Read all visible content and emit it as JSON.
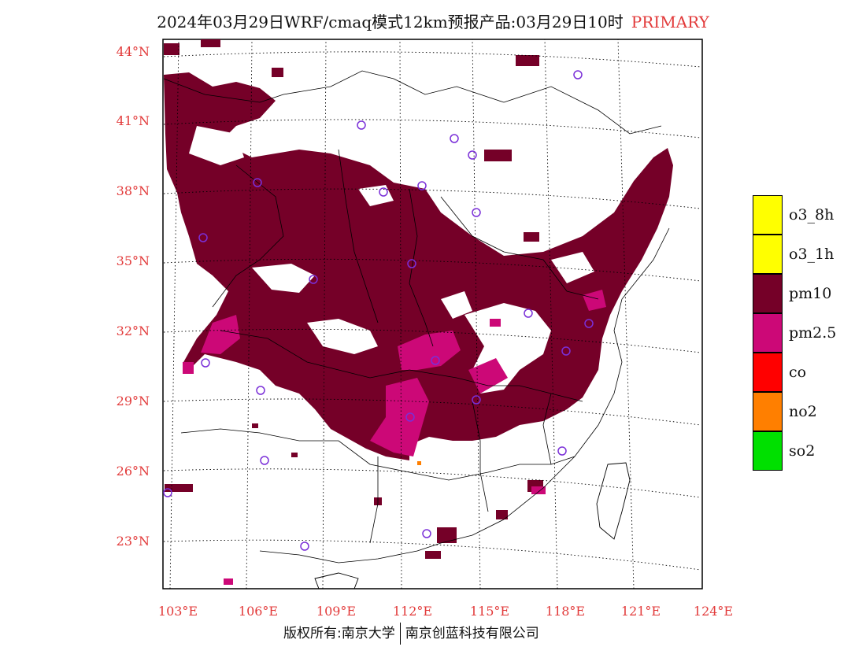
{
  "title": {
    "text": "2024年03月29日WRF/cmaq模式12km预报产品:03月29日10时",
    "mode": "PRIMARY"
  },
  "axes": {
    "lat_labels": [
      "44°N",
      "41°N",
      "38°N",
      "35°N",
      "32°N",
      "29°N",
      "26°N",
      "23°N"
    ],
    "lon_labels": [
      "103°E",
      "106°E",
      "109°E",
      "112°E",
      "115°E",
      "118°E",
      "121°E",
      "124°E"
    ]
  },
  "legend": [
    {
      "label": "o3_8h",
      "color": "#ffff00"
    },
    {
      "label": "o3_1h",
      "color": "#ffff00"
    },
    {
      "label": "pm10",
      "color": "#750028"
    },
    {
      "label": "pm2.5",
      "color": "#cc0877"
    },
    {
      "label": "co",
      "color": "#ff0000"
    },
    {
      "label": "no2",
      "color": "#ff7f00"
    },
    {
      "label": "so2",
      "color": "#00e000"
    }
  ],
  "colors": {
    "tick_text": "#e23a3a",
    "pm10": "#750028",
    "pm25": "#cc0877",
    "station": "#7a2fd8"
  },
  "footer": {
    "left": "版权所有:南京大学",
    "right": "南京创蓝科技有限公司"
  }
}
